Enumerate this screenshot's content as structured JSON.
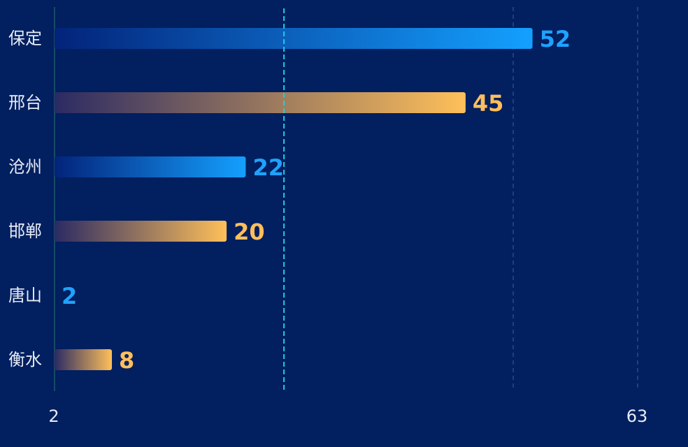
{
  "chart_data": {
    "type": "bar",
    "orientation": "horizontal",
    "categories": [
      "保定",
      "邢台",
      "沧州",
      "邯郸",
      "唐山",
      "衡水"
    ],
    "values": [
      52,
      45,
      22,
      20,
      2,
      8
    ],
    "x_ticks": [
      "2",
      "63"
    ],
    "xlim": [
      2,
      63
    ],
    "reference_line": 26,
    "grid": "vertical dashed",
    "colors": {
      "blue_start": "#03237a",
      "blue_end": "#14a0ff",
      "gold_start": "#2b2a63",
      "gold_end": "#ffc05a",
      "blue_label": "#1fa2ff",
      "gold_label": "#ffbf5c",
      "grid": "#2b4a86",
      "axis": "#1d5a6a",
      "reference": "#1ecfe0"
    }
  }
}
